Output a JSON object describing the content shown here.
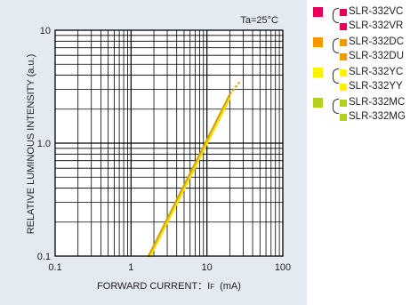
{
  "chart_data": {
    "type": "line",
    "ylabel": "RELATIVE LUMINOUS INTENSITY (a.u.)",
    "xlabel_main": "FORWARD CURRENT：I",
    "xlabel_sub": "F",
    "xlabel_unit": "(mA)",
    "annotation": "Ta=25°C",
    "x_scale": "log",
    "y_scale": "log",
    "xlim": [
      0.1,
      100
    ],
    "ylim": [
      0.1,
      10
    ],
    "x_ticks": [
      "0.1",
      "1",
      "10",
      "100"
    ],
    "y_ticks": [
      "0.1",
      "1.0",
      "10"
    ],
    "grid": true,
    "series": [
      {
        "points": [
          [
            1.7,
            0.1
          ],
          [
            20,
            2.7
          ]
        ],
        "color": "#d4a000",
        "extension": [
          [
            20,
            2.7
          ],
          [
            28,
            3.6
          ]
        ]
      },
      {
        "points": [
          [
            1.8,
            0.1
          ],
          [
            20,
            2.5
          ]
        ],
        "color": "#f0e000"
      }
    ]
  },
  "legend": {
    "groups": [
      {
        "color": "#e6005a",
        "items": [
          {
            "label": "SLR-332VC",
            "color": "#e6005a"
          },
          {
            "label": "SLR-332VR",
            "color": "#e6005a"
          }
        ]
      },
      {
        "color": "#f39800",
        "items": [
          {
            "label": "SLR-332DC",
            "color": "#f39800"
          },
          {
            "label": "SLR-332DU",
            "color": "#f39800"
          }
        ]
      },
      {
        "color": "#fff100",
        "items": [
          {
            "label": "SLR-332YC",
            "color": "#fff100"
          },
          {
            "label": "SLR-332YY",
            "color": "#fff100"
          }
        ]
      },
      {
        "color": "#b5cf1a",
        "items": [
          {
            "label": "SLR-332MC",
            "color": "#b5cf1a"
          },
          {
            "label": "SLR-332MG",
            "color": "#b5cf1a"
          }
        ]
      }
    ]
  }
}
